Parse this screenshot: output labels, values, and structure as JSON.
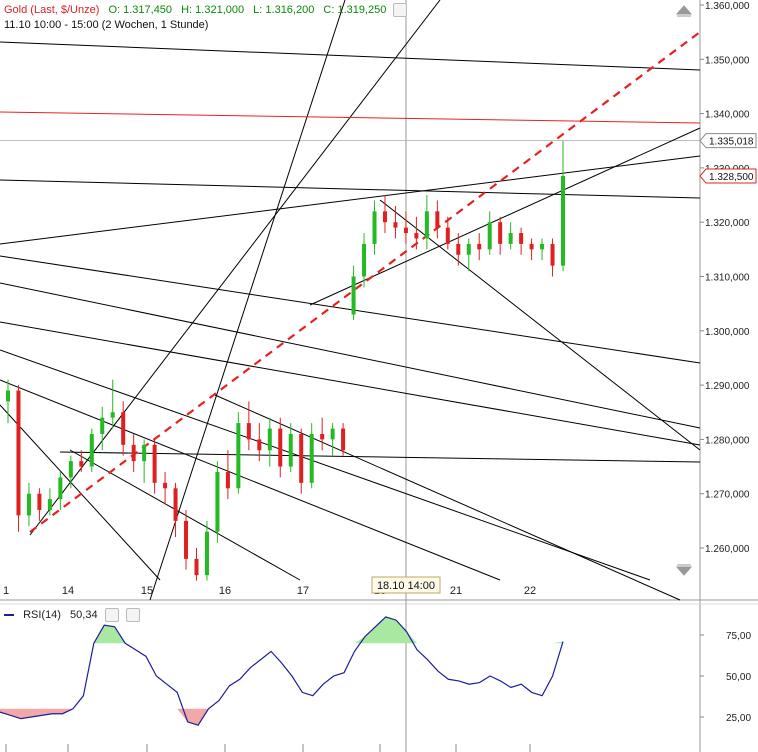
{
  "header": {
    "instrument": "Gold (Last, $/Unze)",
    "open": "O: 1.317,450",
    "high": "H: 1.321,000",
    "low": "L: 1.316,200",
    "close": "C: 1.319,250",
    "period": "11.10 10:00 - 15:00 (2 Wochen, 1 Stunde)"
  },
  "crosshair_label": "18.10 14:00",
  "rsi": {
    "label": "RSI(14)",
    "value": "50,34"
  },
  "colors": {
    "up": "#22bb22",
    "down": "#e02020",
    "trend": "#000000",
    "channel": "#e82020",
    "rsi_line": "#1d1d9e",
    "rsi_ob": "#a8e8a0",
    "rsi_os": "#f0a8a8"
  },
  "chart_data": {
    "type": "candlestick",
    "title": "Gold (Last, $/Unze)",
    "y_axis": {
      "ticks": [
        "1.260,000",
        "1.270,000",
        "1.280,000",
        "1.290,000",
        "1.300,000",
        "1.310,000",
        "1.320,000",
        "1.330,000",
        "1.340,000",
        "1.350,000",
        "1.360,000"
      ],
      "range": [
        1254,
        1361
      ]
    },
    "x_axis": {
      "ticks": [
        "1",
        "14",
        "15",
        "16",
        "17",
        "18",
        "21",
        "22"
      ]
    },
    "price_labels": [
      "1.335,018",
      "1.328,500"
    ],
    "candles": [
      [
        1287,
        1291,
        1283,
        1289
      ],
      [
        1289,
        1290,
        1263,
        1266
      ],
      [
        1266,
        1272,
        1264,
        1270
      ],
      [
        1270,
        1271,
        1265,
        1267
      ],
      [
        1267,
        1271,
        1266,
        1269
      ],
      [
        1269,
        1274,
        1267,
        1273
      ],
      [
        1273,
        1277,
        1271,
        1276
      ],
      [
        1276,
        1278,
        1274,
        1275
      ],
      [
        1275,
        1282,
        1274,
        1281
      ],
      [
        1281,
        1286,
        1278,
        1284
      ],
      [
        1284,
        1291,
        1282,
        1285
      ],
      [
        1285,
        1287,
        1277,
        1279
      ],
      [
        1279,
        1281,
        1274,
        1276
      ],
      [
        1276,
        1280,
        1272,
        1279
      ],
      [
        1279,
        1280,
        1270,
        1272
      ],
      [
        1272,
        1274,
        1268,
        1271
      ],
      [
        1271,
        1272,
        1262,
        1265
      ],
      [
        1265,
        1267,
        1256,
        1258
      ],
      [
        1258,
        1260,
        1254,
        1255
      ],
      [
        1255,
        1265,
        1254,
        1263
      ],
      [
        1263,
        1276,
        1261,
        1274
      ],
      [
        1274,
        1278,
        1269,
        1271
      ],
      [
        1271,
        1285,
        1270,
        1283
      ],
      [
        1283,
        1287,
        1278,
        1280
      ],
      [
        1280,
        1283,
        1276,
        1278
      ],
      [
        1278,
        1284,
        1275,
        1282
      ],
      [
        1282,
        1284,
        1273,
        1275
      ],
      [
        1275,
        1283,
        1274,
        1281
      ],
      [
        1281,
        1282,
        1270,
        1272
      ],
      [
        1272,
        1283,
        1271,
        1281
      ],
      [
        1281,
        1284,
        1278,
        1280
      ],
      [
        1280,
        1283,
        1277,
        1282
      ],
      [
        1282,
        1283,
        1277,
        1278
      ],
      [
        1303,
        1312,
        1302,
        1310
      ],
      [
        1310,
        1318,
        1308,
        1316
      ],
      [
        1316,
        1324,
        1314,
        1322
      ],
      [
        1322,
        1325,
        1318,
        1320
      ],
      [
        1320,
        1323,
        1317,
        1319
      ],
      [
        1319,
        1322,
        1316,
        1318
      ],
      [
        1318,
        1321,
        1315,
        1317
      ],
      [
        1317,
        1325,
        1315,
        1322
      ],
      [
        1322,
        1324,
        1317,
        1319
      ],
      [
        1319,
        1321,
        1315,
        1316
      ],
      [
        1316,
        1318,
        1312,
        1314
      ],
      [
        1314,
        1317,
        1311,
        1316
      ],
      [
        1316,
        1318,
        1313,
        1315
      ],
      [
        1315,
        1322,
        1314,
        1320
      ],
      [
        1320,
        1321,
        1314,
        1316
      ],
      [
        1316,
        1320,
        1315,
        1318
      ],
      [
        1318,
        1319,
        1314,
        1316
      ],
      [
        1316,
        1317,
        1313,
        1315
      ],
      [
        1315,
        1317,
        1313,
        1316
      ],
      [
        1316,
        1317,
        1310,
        1312
      ],
      [
        1312,
        1335,
        1311,
        1328.5
      ]
    ],
    "rsi": {
      "values": [
        28,
        26,
        24,
        25,
        26,
        27,
        27,
        30,
        38,
        70,
        81,
        80,
        70,
        66,
        62,
        50,
        45,
        40,
        22,
        20,
        30,
        35,
        44,
        48,
        55,
        60,
        65,
        58,
        50,
        40,
        38,
        45,
        50,
        52,
        65,
        74,
        80,
        86,
        84,
        77,
        66,
        60,
        53,
        48,
        47,
        45,
        46,
        50,
        47,
        43,
        45,
        40,
        38,
        50,
        71
      ],
      "ticks": [
        "25,00",
        "50,00",
        "75,00"
      ],
      "overbought": 70,
      "oversold": 30
    }
  }
}
